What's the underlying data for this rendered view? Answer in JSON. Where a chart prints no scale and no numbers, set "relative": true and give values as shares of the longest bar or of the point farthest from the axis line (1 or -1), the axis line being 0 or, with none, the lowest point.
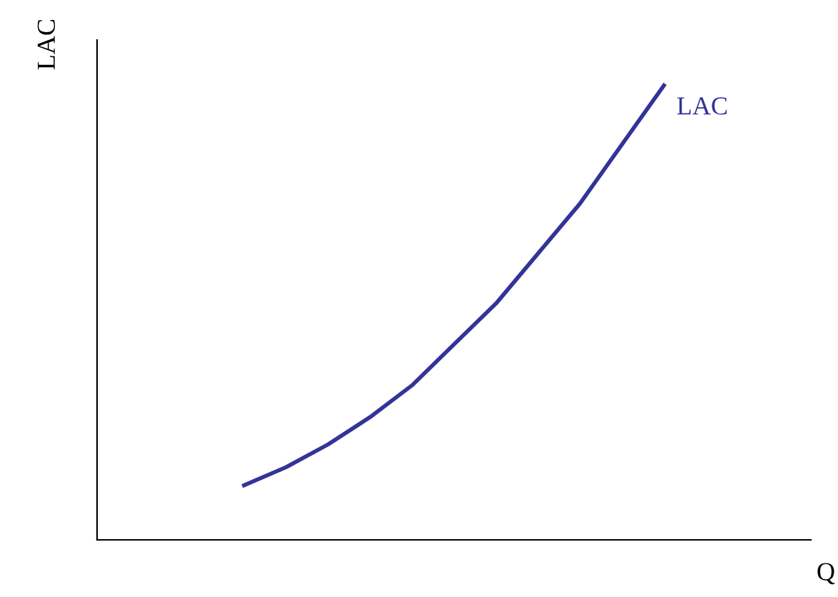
{
  "chart_data": {
    "type": "line",
    "relative": true,
    "xlabel": "Q",
    "ylabel": "LAC",
    "categories": [
      null,
      null,
      null,
      null,
      null,
      null,
      null,
      null,
      null,
      null,
      null,
      null,
      null,
      null,
      null,
      null,
      null
    ],
    "series": [
      {
        "name": "LAC",
        "color": "#333399",
        "values": [
          null,
          null,
          null,
          0.12,
          0.16,
          0.21,
          0.27,
          0.34,
          0.43,
          0.52,
          0.63,
          0.74,
          0.87,
          1.0,
          null,
          null,
          null
        ]
      }
    ],
    "grid": false,
    "legend": false,
    "marker": "none",
    "line_style": "solid"
  }
}
